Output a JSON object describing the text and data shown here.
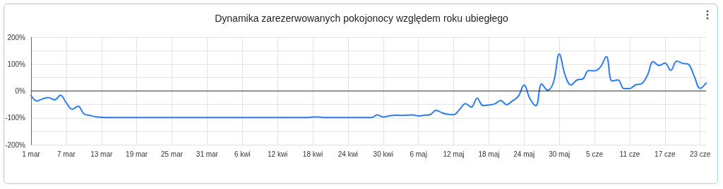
{
  "chart_data": {
    "type": "line",
    "title": "Dynamika zarezerwowanych pokojonocy względem roku ubiegłego",
    "categories": [
      "1 mar",
      null,
      null,
      null,
      null,
      null,
      "7 mar",
      null,
      null,
      null,
      null,
      null,
      "13 mar",
      null,
      null,
      null,
      null,
      null,
      "19 mar",
      null,
      null,
      null,
      null,
      null,
      "25 mar",
      null,
      null,
      null,
      null,
      null,
      "31 mar",
      null,
      null,
      null,
      null,
      null,
      "6 kwi",
      null,
      null,
      null,
      null,
      null,
      "12 kwi",
      null,
      null,
      null,
      null,
      null,
      "18 kwi",
      null,
      null,
      null,
      null,
      null,
      "24 kwi",
      null,
      null,
      null,
      null,
      null,
      "30 kwi",
      null,
      null,
      null,
      null,
      null,
      "6 maj",
      null,
      null,
      null,
      null,
      null,
      "12 maj",
      null,
      null,
      null,
      null,
      null,
      "18 maj",
      null,
      null,
      null,
      null,
      null,
      "24 maj",
      null,
      null,
      null,
      null,
      null,
      "30 maj",
      null,
      null,
      null,
      null,
      null,
      "5 cze",
      null,
      null,
      null,
      null,
      null,
      "11 cze",
      null,
      null,
      null,
      null,
      null,
      "17 cze",
      null,
      null,
      null,
      null,
      null,
      "23 cze",
      null
    ],
    "series": [
      {
        "color": "#2a7df5",
        "values": [
          -17,
          -37,
          -29,
          -25,
          -33,
          -16,
          -44,
          -68,
          -57,
          -85,
          -91,
          -96,
          -98,
          -99,
          -99,
          -99,
          -99,
          -99,
          -99,
          -99,
          -99,
          -99,
          -99,
          -99,
          -99,
          -99,
          -99,
          -99,
          -99,
          -99,
          -99,
          -99,
          -99,
          -99,
          -99,
          -99,
          -99,
          -99,
          -99,
          -99,
          -99,
          -99,
          -99,
          -99,
          -99,
          -99,
          -99,
          -99,
          -97,
          -97,
          -99,
          -99,
          -99,
          -99,
          -99,
          -99,
          -99,
          -99,
          -99,
          -89,
          -97,
          -93,
          -90,
          -91,
          -90,
          -89,
          -93,
          -90,
          -88,
          -72,
          -81,
          -87,
          -88,
          -69,
          -47,
          -60,
          -27,
          -54,
          -52,
          -48,
          -35,
          -51,
          -37,
          -20,
          22,
          -29,
          -55,
          26,
          3,
          32,
          137,
          58,
          22,
          41,
          45,
          76,
          75,
          89,
          128,
          37,
          41,
          9,
          9,
          23,
          27,
          58,
          109,
          95,
          104,
          77,
          111,
          103,
          99,
          54,
          10,
          30
        ]
      }
    ],
    "ylim": [
      -200,
      200
    ],
    "yticks": [
      {
        "value": -200,
        "label": "-200%"
      },
      {
        "value": -150,
        "label": null
      },
      {
        "value": -100,
        "label": "-100%"
      },
      {
        "value": -50,
        "label": null
      },
      {
        "value": 0,
        "label": "0%"
      },
      {
        "value": 50,
        "label": null
      },
      {
        "value": 100,
        "label": "100%"
      },
      {
        "value": 150,
        "label": null
      },
      {
        "value": 200,
        "label": "200%"
      }
    ],
    "ref_lines": [
      {
        "axis": "y",
        "value": 0,
        "color": "#333333"
      }
    ],
    "grid": true,
    "marker": "none",
    "line_style": "solid"
  }
}
